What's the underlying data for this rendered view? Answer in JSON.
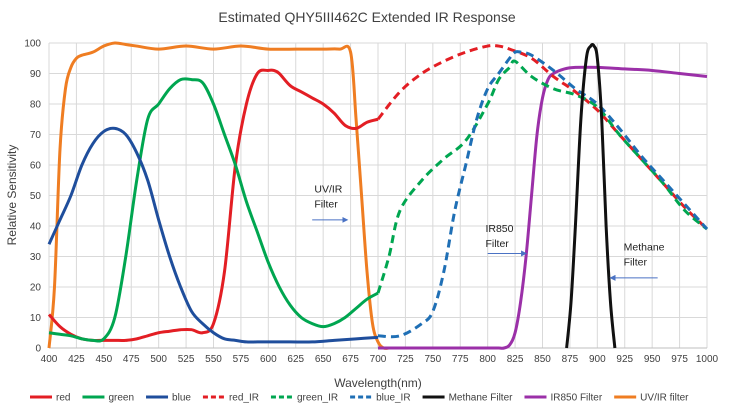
{
  "chart_data": {
    "type": "line",
    "title": "Estimated QHY5III462C Extended IR Response",
    "xlabel": "Wavelength(nm)",
    "ylabel": "Relative Sensitivity",
    "xlim": [
      400,
      1000
    ],
    "ylim": [
      0,
      100
    ],
    "xticks": [
      "400",
      "425",
      "450",
      "475",
      "500",
      "525",
      "550",
      "575",
      "600",
      "625",
      "650",
      "675",
      "700",
      "725",
      "750",
      "775",
      "800",
      "825",
      "850",
      "875",
      "900",
      "925",
      "950",
      "975",
      "1000"
    ],
    "yticks": [
      "0",
      "10",
      "20",
      "30",
      "40",
      "50",
      "60",
      "70",
      "80",
      "90",
      "100"
    ],
    "grid": true,
    "legend_position": "bottom",
    "series": [
      {
        "name": "red",
        "color": "#e31e24",
        "dash": false,
        "x": [
          400,
          410,
          420,
          430,
          440,
          450,
          460,
          470,
          480,
          490,
          500,
          510,
          520,
          530,
          540,
          550,
          560,
          570,
          580,
          590,
          600,
          605,
          610,
          620,
          630,
          640,
          650,
          660,
          670,
          680,
          690,
          700
        ],
        "y": [
          11,
          7,
          4.5,
          3,
          2.5,
          2.5,
          2.5,
          2.5,
          3,
          4,
          5,
          5.5,
          6,
          6,
          5,
          8,
          25,
          60,
          80,
          90,
          91,
          91,
          90,
          86,
          84,
          82,
          80,
          77,
          73,
          72,
          74,
          75
        ]
      },
      {
        "name": "green",
        "color": "#00a650",
        "dash": false,
        "x": [
          400,
          410,
          420,
          430,
          440,
          450,
          460,
          470,
          480,
          490,
          500,
          510,
          520,
          530,
          540,
          550,
          560,
          570,
          580,
          590,
          600,
          610,
          620,
          630,
          640,
          650,
          660,
          670,
          680,
          690,
          700
        ],
        "y": [
          5,
          4.5,
          4,
          3,
          2.5,
          3,
          10,
          30,
          55,
          75,
          80,
          85,
          88,
          88,
          87,
          80,
          70,
          60,
          48,
          38,
          28,
          20,
          14,
          10,
          8,
          7,
          8,
          10,
          13,
          16,
          18
        ]
      },
      {
        "name": "blue",
        "color": "#1f4e9c",
        "dash": false,
        "x": [
          400,
          410,
          420,
          430,
          440,
          450,
          460,
          470,
          480,
          490,
          500,
          510,
          520,
          530,
          540,
          550,
          560,
          570,
          580,
          590,
          600,
          620,
          640,
          660,
          680,
          700
        ],
        "y": [
          34,
          42,
          50,
          60,
          67,
          71,
          72,
          70,
          64,
          55,
          42,
          30,
          20,
          12,
          8,
          5,
          3,
          2.5,
          2,
          2,
          2,
          2,
          2,
          2.5,
          3,
          3.5
        ]
      },
      {
        "name": "red_IR",
        "color": "#e31e24",
        "dash": true,
        "x": [
          700,
          720,
          740,
          760,
          780,
          800,
          810,
          820,
          840,
          860,
          880,
          900,
          920,
          940,
          960,
          980,
          1000
        ],
        "y": [
          75,
          84,
          90,
          94,
          97,
          99,
          99,
          98,
          95,
          89,
          84,
          78,
          70,
          62,
          54,
          46,
          39
        ]
      },
      {
        "name": "green_IR",
        "color": "#00a650",
        "dash": true,
        "x": [
          700,
          710,
          720,
          740,
          760,
          780,
          800,
          810,
          820,
          825,
          840,
          860,
          880,
          900,
          920,
          940,
          960,
          980,
          1000
        ],
        "y": [
          18,
          30,
          45,
          55,
          62,
          68,
          80,
          88,
          92,
          94,
          89,
          85,
          83,
          79,
          70,
          62,
          54,
          45,
          39
        ]
      },
      {
        "name": "blue_IR",
        "color": "#1f6fb5",
        "dash": true,
        "x": [
          700,
          720,
          740,
          750,
          760,
          770,
          780,
          790,
          800,
          810,
          820,
          825,
          830,
          840,
          860,
          880,
          900,
          920,
          940,
          960,
          980,
          1000
        ],
        "y": [
          4,
          4,
          8,
          12,
          25,
          45,
          60,
          75,
          85,
          90,
          95,
          97,
          97,
          96,
          91,
          85,
          80,
          72,
          63,
          55,
          47,
          39
        ]
      },
      {
        "name": "Methane Filter",
        "color": "#111111",
        "dash": false,
        "x": [
          872,
          876,
          880,
          885,
          890,
          894,
          897,
          900,
          904,
          908,
          912,
          916
        ],
        "y": [
          0,
          15,
          40,
          75,
          95,
          99,
          99,
          95,
          75,
          40,
          15,
          0
        ]
      },
      {
        "name": "IR850 Filter",
        "color": "#9b30a8",
        "dash": false,
        "x": [
          700,
          760,
          780,
          790,
          800,
          805,
          810,
          815,
          820,
          825,
          830,
          835,
          840,
          845,
          850,
          855,
          860,
          870,
          880,
          900,
          925,
          950,
          975,
          1000
        ],
        "y": [
          0,
          0,
          0,
          0,
          0,
          0,
          0,
          0,
          1,
          5,
          15,
          30,
          50,
          70,
          82,
          88,
          90,
          91.5,
          92,
          92,
          91.5,
          91,
          90,
          89
        ]
      },
      {
        "name": "UV/IR filter",
        "color": "#ef7d22",
        "dash": false,
        "x": [
          400,
          405,
          410,
          415,
          420,
          425,
          430,
          440,
          450,
          460,
          470,
          480,
          500,
          525,
          550,
          575,
          600,
          625,
          650,
          665,
          675,
          680,
          685,
          690,
          695,
          700,
          705,
          710
        ],
        "y": [
          0,
          20,
          65,
          85,
          92,
          95,
          96,
          97,
          99,
          100,
          99.5,
          99,
          98,
          99,
          98,
          99,
          98,
          98,
          98,
          98,
          97,
          75,
          50,
          25,
          8,
          2,
          0,
          0
        ]
      }
    ],
    "annotations": [
      {
        "text": [
          "UV/IR",
          "Filter"
        ],
        "x": 642,
        "y": 51,
        "arrow_to": [
          672,
          42
        ],
        "arrow_from": [
          640,
          42
        ]
      },
      {
        "text": [
          "IR850",
          "Filter"
        ],
        "x": 798,
        "y": 38,
        "arrow_to": [
          835,
          31
        ],
        "arrow_from": [
          800,
          31
        ]
      },
      {
        "text": [
          "Methane",
          "Filter"
        ],
        "x": 924,
        "y": 32,
        "arrow_to": [
          912,
          23
        ],
        "arrow_from": [
          955,
          23
        ]
      }
    ]
  }
}
